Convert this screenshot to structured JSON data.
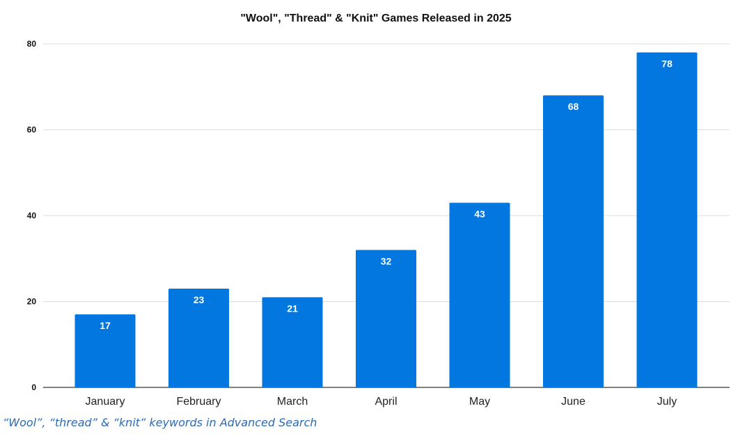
{
  "chart_data": {
    "type": "bar",
    "title": "\"Wool\", \"Thread\" & \"Knit\" Games Released in 2025",
    "xlabel": "",
    "ylabel": "",
    "categories": [
      "January",
      "February",
      "March",
      "April",
      "May",
      "June",
      "July"
    ],
    "values": [
      17,
      23,
      21,
      32,
      43,
      68,
      78
    ],
    "ylim": [
      0,
      80
    ],
    "yticks": [
      0,
      20,
      40,
      60,
      80
    ],
    "data_labels": true,
    "grid": true,
    "legend": "none",
    "bar_color": "#0277e0",
    "gridline_color": "#dcdcdc",
    "axis_color": "#333333"
  },
  "caption": "“Wool”, “thread” & “knit” keywords in Advanced Search"
}
